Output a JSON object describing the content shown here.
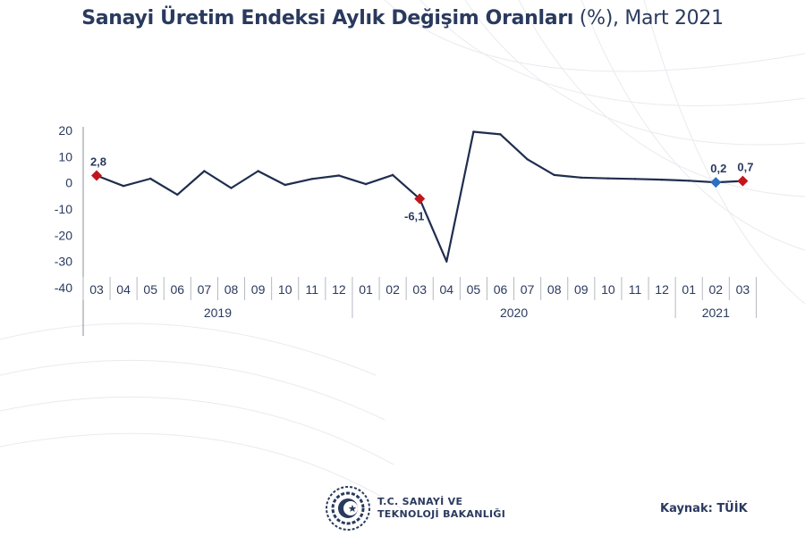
{
  "title": {
    "bold": "Sanayi Üretim Endeksi Aylık Değişim Oranları",
    "light": " (%), Mart 2021"
  },
  "footer": {
    "ministry_line1": "T.C. SANAYİ VE",
    "ministry_line2": "TEKNOLOJİ BAKANLIĞI",
    "source": "Kaynak: TÜİK"
  },
  "colors": {
    "line": "#1f2d4e",
    "red_marker": "#c0161c",
    "blue_marker": "#2d6fc0",
    "text": "#2a3a5e"
  },
  "chart_data": {
    "type": "line",
    "title": "Sanayi Üretim Endeksi Aylık Değişim Oranları (%), Mart 2021",
    "categories": [
      "03",
      "04",
      "05",
      "06",
      "07",
      "08",
      "09",
      "10",
      "11",
      "12",
      "01",
      "02",
      "03",
      "04",
      "05",
      "06",
      "07",
      "08",
      "09",
      "10",
      "11",
      "12",
      "01",
      "02",
      "03"
    ],
    "years": [
      {
        "label": "2019",
        "from": 0,
        "to": 9
      },
      {
        "label": "2020",
        "from": 10,
        "to": 21
      },
      {
        "label": "2021",
        "from": 22,
        "to": 24
      }
    ],
    "series": [
      {
        "values": [
          2.8,
          -1.2,
          1.6,
          -4.5,
          4.5,
          -2.0,
          4.5,
          -0.8,
          1.5,
          2.8,
          -0.5,
          3.0,
          -6.1,
          -30.0,
          19.5,
          18.5,
          9.0,
          3.0,
          2.0,
          1.7,
          1.5,
          1.2,
          0.8,
          0.2,
          0.7
        ]
      }
    ],
    "markers": [
      {
        "index": 0,
        "label": "2,8",
        "color": "red"
      },
      {
        "index": 12,
        "label": "-6,1",
        "color": "red"
      },
      {
        "index": 23,
        "label": "0,2",
        "color": "blue"
      },
      {
        "index": 24,
        "label": "0,7",
        "color": "red"
      }
    ],
    "y_ticks": [
      20,
      10,
      0,
      -10,
      -20,
      -30,
      -40
    ],
    "ylim": [
      -40,
      20
    ],
    "grid": false,
    "legend": "none"
  }
}
